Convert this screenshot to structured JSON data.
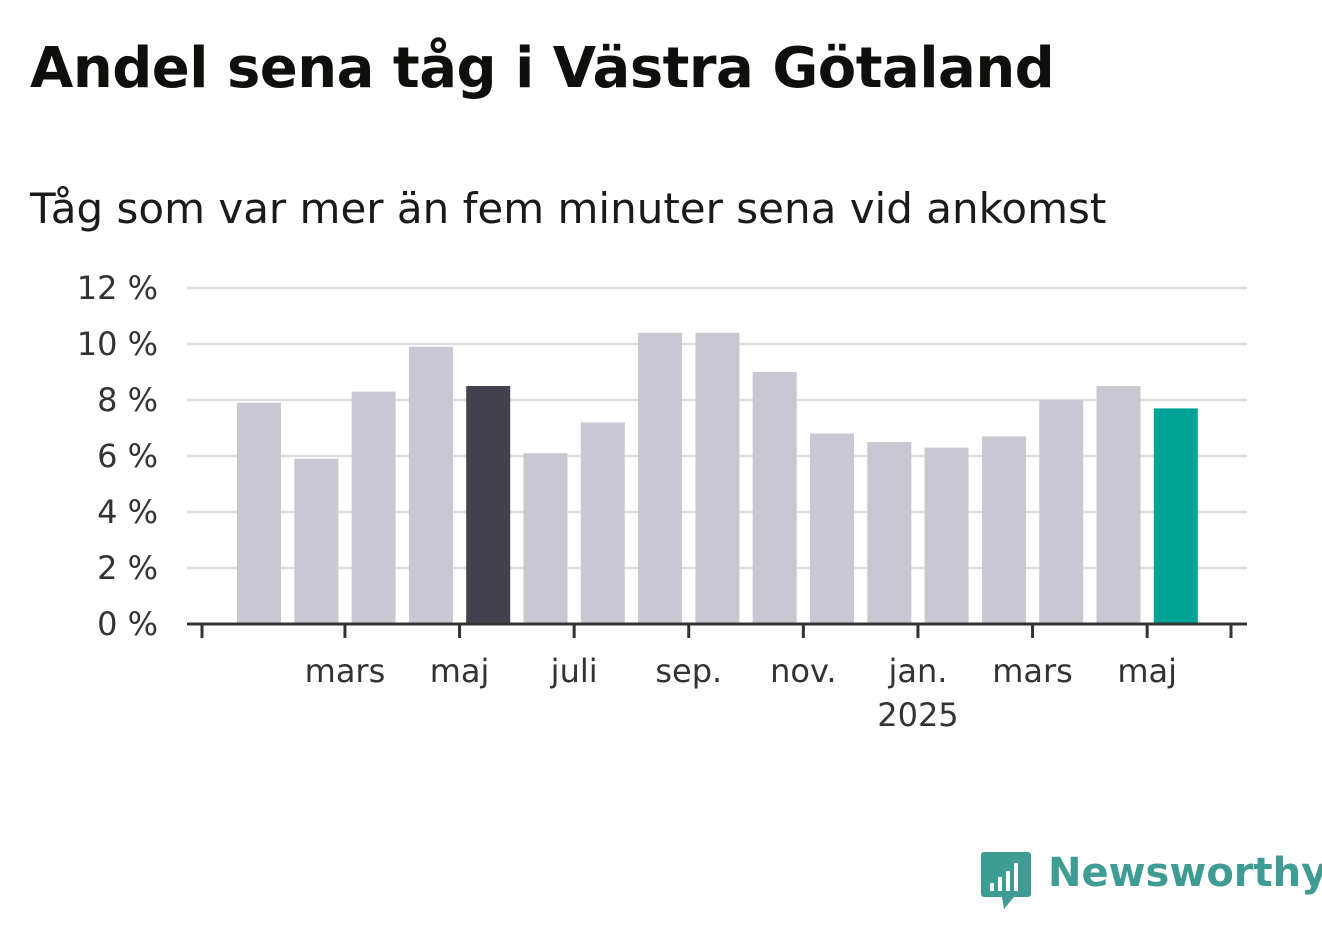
{
  "title": "Andel sena tåg i Västra Götaland",
  "subtitle": "Tåg som var mer än fem minuter sena vid ankomst",
  "brand": {
    "name": "Newsworthy",
    "icon": "newsworthy-chat-bar-icon",
    "color": "#3e9c95"
  },
  "colors": {
    "default_bar": "#c8c7d2",
    "highlight_bar": "#42414d",
    "latest_bar": "#00a497",
    "grid": "#dddddd",
    "axis": "#333333"
  },
  "chart_data": {
    "type": "bar",
    "ylim": [
      0,
      12
    ],
    "yticks": [
      0,
      2,
      4,
      6,
      8,
      10,
      12
    ],
    "ytick_suffix": " %",
    "grid": true,
    "values": [
      7.9,
      5.9,
      8.3,
      9.9,
      8.5,
      6.1,
      7.2,
      10.4,
      10.4,
      9.0,
      6.8,
      6.5,
      6.3,
      6.7,
      8.0,
      8.5,
      7.7
    ],
    "highlight": [
      4
    ],
    "latest": [
      16
    ],
    "x_tick_labels": [
      {
        "month": "mars",
        "year": "",
        "pos": 2.0
      },
      {
        "month": "maj",
        "year": "",
        "pos": 4.0
      },
      {
        "month": "juli",
        "year": "",
        "pos": 6.0
      },
      {
        "month": "sep.",
        "year": "",
        "pos": 8.0
      },
      {
        "month": "nov.",
        "year": "",
        "pos": 10.0
      },
      {
        "month": "jan.",
        "year": "2025",
        "pos": 12.0
      },
      {
        "month": "mars",
        "year": "",
        "pos": 14.0
      },
      {
        "month": "maj",
        "year": "",
        "pos": 16.0
      }
    ],
    "xlabel": "",
    "ylabel": ""
  }
}
